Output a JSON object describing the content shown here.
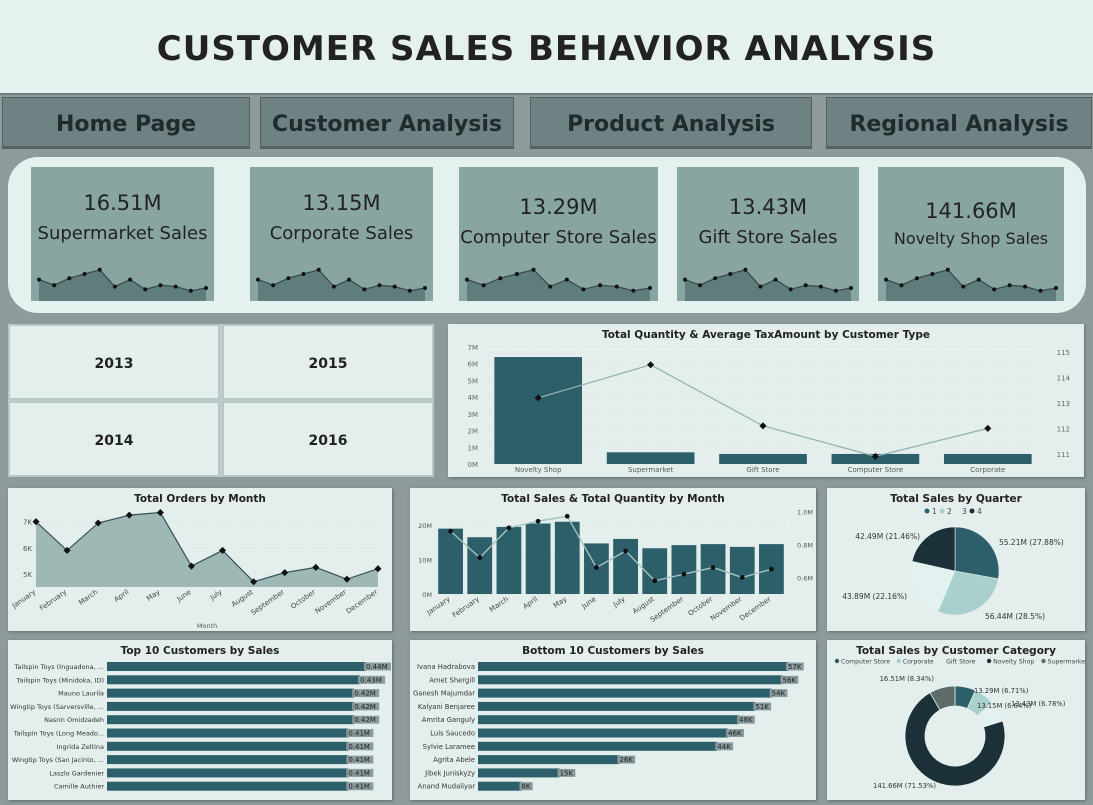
{
  "title": "CUSTOMER SALES BEHAVIOR ANALYSIS",
  "nav": [
    "Home Page",
    "Customer Analysis",
    "Product Analysis",
    "Regional Analysis"
  ],
  "kpis": [
    {
      "value": "16.51M",
      "label": "Supermarket Sales"
    },
    {
      "value": "13.15M",
      "label": "Corporate Sales"
    },
    {
      "value": "13.29M",
      "label": "Computer Store Sales"
    },
    {
      "value": "13.43M",
      "label": "Gift Store Sales"
    },
    {
      "value": "141.66M",
      "label": "Novelty Shop Sales"
    }
  ],
  "years": [
    "2013",
    "2015",
    "2014",
    "2016"
  ],
  "colors": {
    "bar": "#2d5f6b",
    "line": "#8fb1ad",
    "dark": "#1c3038",
    "area": "#9eb8b6",
    "kpi_area": "#5e7d7c"
  },
  "chart_data": [
    {
      "id": "qty-tax",
      "type": "bar",
      "title": "Total Quantity & Average TaxAmount by Customer Type",
      "categories": [
        "Novelty Shop",
        "Supermarket",
        "Gift Store",
        "Computer Store",
        "Corporate"
      ],
      "series": [
        {
          "values": [
            6400000,
            700000,
            600000,
            600000,
            600000
          ]
        },
        {
          "values": [
            113.2,
            114.5,
            112.1,
            110.9,
            112.0
          ]
        }
      ],
      "y_ticks": [
        "0M",
        "1M",
        "2M",
        "3M",
        "4M",
        "5M",
        "6M",
        "7M"
      ],
      "y2_ticks": [
        "111",
        "112",
        "113",
        "114",
        "115"
      ],
      "ylim": [
        0,
        7000000
      ],
      "y2lim": [
        110.6,
        115.2
      ]
    },
    {
      "id": "orders-month",
      "type": "area",
      "title": "Total Orders by Month",
      "xlabel": "Month",
      "categories": [
        "January",
        "February",
        "March",
        "April",
        "May",
        "June",
        "July",
        "August",
        "September",
        "October",
        "November",
        "December"
      ],
      "values": [
        7000,
        5900,
        6950,
        7250,
        7350,
        5300,
        5900,
        4700,
        5050,
        5250,
        4800,
        5200
      ],
      "y_ticks": [
        "5K",
        "6K",
        "7K"
      ],
      "ylim": [
        4500,
        7600
      ]
    },
    {
      "id": "sales-qty-month",
      "type": "bar",
      "title": "Total Sales & Total Quantity by Month",
      "categories": [
        "January",
        "February",
        "March",
        "April",
        "May",
        "June",
        "July",
        "August",
        "September",
        "October",
        "November",
        "December"
      ],
      "series": [
        {
          "values": [
            19000000,
            16500000,
            19500000,
            20500000,
            21000000,
            14700000,
            16000000,
            13300000,
            14200000,
            14500000,
            13700000,
            14500000
          ]
        },
        {
          "values": [
            0.88,
            0.72,
            0.9,
            0.94,
            0.97,
            0.66,
            0.76,
            0.58,
            0.62,
            0.66,
            0.6,
            0.65
          ]
        }
      ],
      "y_ticks": [
        "0M",
        "10M",
        "20M"
      ],
      "y2_ticks": [
        "0.6M",
        "0.8M",
        "1.0M"
      ],
      "ylim": [
        0,
        25000000
      ],
      "y2lim": [
        0.5,
        1.02
      ]
    },
    {
      "id": "sales-quarter",
      "type": "pie",
      "title": "Total Sales by Quarter",
      "legend": [
        "1",
        "2",
        "3",
        "4"
      ],
      "values": [
        55.21,
        56.44,
        43.89,
        42.49
      ],
      "labels": [
        "55.21M (27.88%)",
        "56.44M (28.5%)",
        "43.89M (22.16%)",
        "42.49M (21.46%)"
      ],
      "colors": [
        "#2d5f6b",
        "#a9d0cc",
        "#e3f2f0",
        "#1c3038"
      ]
    },
    {
      "id": "top10",
      "type": "bar",
      "orientation": "horizontal",
      "title": "Top 10 Customers by Sales",
      "categories": [
        "Tailspin Toys (Inguadona, ...",
        "Tailspin Toys (Minidoka, ID)",
        "Mauno Laurila",
        "Wingtip Toys (Sarversville, ...",
        "Nasrin Omidzadeh",
        "Tailspin Toys (Long Meado...",
        "Ingrida Zeltina",
        "Wingtip Toys (San Jacinto, ...",
        "Laszlo Gardenier",
        "Camille Authier"
      ],
      "values": [
        0.44,
        0.43,
        0.42,
        0.42,
        0.42,
        0.41,
        0.41,
        0.41,
        0.41,
        0.41
      ],
      "value_labels": [
        "0.44M",
        "0.43M",
        "0.42M",
        "0.42M",
        "0.42M",
        "0.41M",
        "0.41M",
        "0.41M",
        "0.41M",
        "0.41M"
      ]
    },
    {
      "id": "bottom10",
      "type": "bar",
      "orientation": "horizontal",
      "title": "Bottom 10 Customers by Sales",
      "categories": [
        "Ivana Hadrabova",
        "Amet Shergill",
        "Ganesh Majumdar",
        "Kalyani Benjaree",
        "Amrita Ganguly",
        "Luis Saucedo",
        "Sylvie Laramee",
        "Agrita Abele",
        "Jibek Juniskyzy",
        "Anand Mudaliyar"
      ],
      "values": [
        57,
        56,
        54,
        51,
        48,
        46,
        44,
        26,
        15,
        8
      ],
      "value_labels": [
        "57K",
        "56K",
        "54K",
        "51K",
        "48K",
        "46K",
        "44K",
        "26K",
        "15K",
        "8K"
      ]
    },
    {
      "id": "sales-category",
      "type": "pie",
      "title": "Total Sales by Customer Category",
      "legend": [
        "Computer Store",
        "Corporate",
        "Gift Store",
        "Novelty Shop",
        "Supermarket"
      ],
      "values": [
        13.29,
        13.15,
        13.43,
        141.66,
        16.51
      ],
      "labels": [
        "13.29M (6.71%)",
        "13.15M (6.64%)",
        "13.43M (6.78%)",
        "141.66M (71.53%)",
        "16.51M (8.34%)"
      ],
      "colors": [
        "#2d5f6b",
        "#a9d0cc",
        "#e3f2f0",
        "#1c3038",
        "#5e6b6b"
      ]
    }
  ]
}
